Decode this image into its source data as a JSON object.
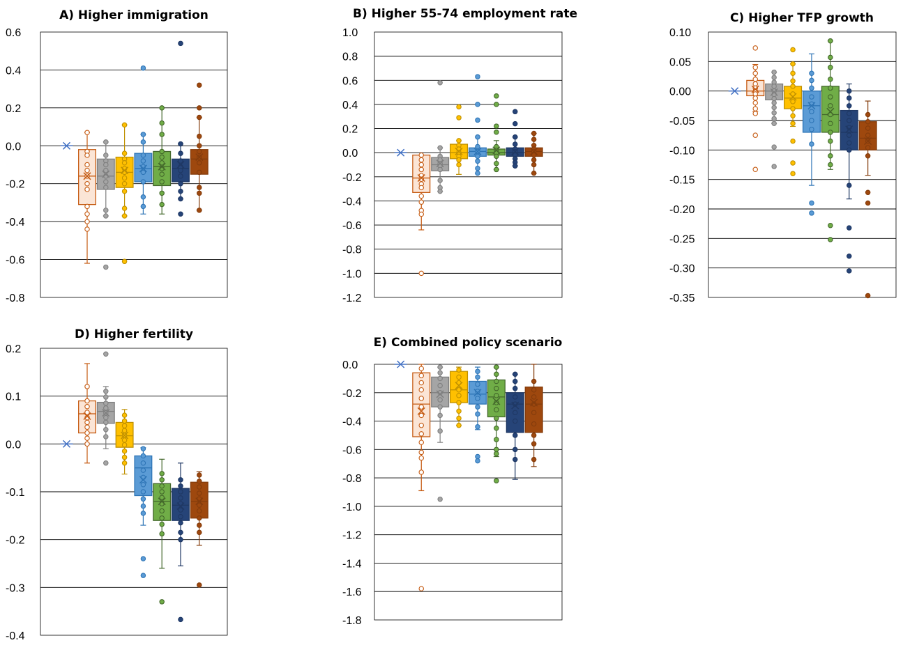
{
  "series_colors": [
    {
      "stroke": "#C55A11",
      "fill": "#FBE5D6",
      "dot": "#ffffff",
      "hollow": true
    },
    {
      "stroke": "#7F7F7F",
      "fill": "#A5A5A5",
      "dot": "#A5A5A5",
      "hollow": false
    },
    {
      "stroke": "#BF9000",
      "fill": "#FFC000",
      "dot": "#FFC000",
      "hollow": false
    },
    {
      "stroke": "#2E75B6",
      "fill": "#5B9BD5",
      "dot": "#5B9BD5",
      "hollow": false
    },
    {
      "stroke": "#43682B",
      "fill": "#70AD47",
      "dot": "#70AD47",
      "hollow": false
    },
    {
      "stroke": "#1F3864",
      "fill": "#264478",
      "dot": "#264478",
      "hollow": false
    },
    {
      "stroke": "#843C0C",
      "fill": "#9E480E",
      "dot": "#9E480E",
      "hollow": false
    }
  ],
  "baseline_color": "#4472C4",
  "chart_data": [
    {
      "type": "box",
      "title": "A) Higher immigration",
      "ylim": [
        -0.8,
        0.6
      ],
      "yticks": [
        "0.6",
        "0.4",
        "0.2",
        "0.0",
        "-0.2",
        "-0.4",
        "-0.6",
        "-0.8"
      ],
      "grid": true,
      "baseline": 0.0,
      "boxes": [
        {
          "q1": -0.31,
          "median": -0.16,
          "q3": -0.02,
          "mean": -0.16,
          "lo": -0.62,
          "hi": 0.07,
          "points": [
            0.07,
            -0.03,
            -0.05,
            -0.1,
            -0.13,
            -0.16,
            -0.2,
            -0.23,
            -0.32,
            -0.36,
            -0.4,
            -0.44
          ]
        },
        {
          "q1": -0.23,
          "median": -0.16,
          "q3": -0.07,
          "mean": -0.15,
          "lo": -0.37,
          "hi": 0.02,
          "points": [
            0.02,
            -0.05,
            -0.08,
            -0.1,
            -0.13,
            -0.16,
            -0.19,
            -0.22,
            -0.34,
            -0.37,
            -0.64
          ]
        },
        {
          "q1": -0.22,
          "median": -0.14,
          "q3": -0.06,
          "mean": -0.13,
          "lo": -0.37,
          "hi": 0.11,
          "points": [
            0.11,
            -0.04,
            -0.07,
            -0.09,
            -0.12,
            -0.14,
            -0.17,
            -0.2,
            -0.24,
            -0.33,
            -0.37,
            -0.61
          ]
        },
        {
          "q1": -0.19,
          "median": -0.12,
          "q3": -0.04,
          "mean": -0.12,
          "lo": -0.36,
          "hi": 0.06,
          "points": [
            0.41,
            0.06,
            0.02,
            -0.05,
            -0.08,
            -0.11,
            -0.14,
            -0.19,
            -0.27,
            -0.32
          ]
        },
        {
          "q1": -0.21,
          "median": -0.11,
          "q3": -0.03,
          "mean": -0.11,
          "lo": -0.36,
          "hi": 0.2,
          "points": [
            0.2,
            0.12,
            0.06,
            -0.03,
            -0.06,
            -0.09,
            -0.12,
            -0.15,
            -0.19,
            -0.25,
            -0.31
          ]
        },
        {
          "q1": -0.19,
          "median": -0.12,
          "q3": -0.07,
          "mean": -0.1,
          "lo": -0.28,
          "hi": 0.01,
          "points": [
            0.54,
            0.01,
            -0.04,
            -0.08,
            -0.11,
            -0.13,
            -0.16,
            -0.2,
            -0.24,
            -0.28,
            -0.36
          ]
        },
        {
          "q1": -0.15,
          "median": -0.07,
          "q3": -0.02,
          "mean": -0.06,
          "lo": -0.34,
          "hi": 0.15,
          "points": [
            0.32,
            0.2,
            0.15,
            0.05,
            0.0,
            -0.03,
            -0.06,
            -0.09,
            -0.14,
            -0.22,
            -0.25,
            -0.34
          ]
        }
      ]
    },
    {
      "type": "box",
      "title": "B) Higher 55-74 employment rate",
      "ylim": [
        -1.2,
        1.0
      ],
      "yticks": [
        "1.0",
        "0.8",
        "0.6",
        "0.4",
        "0.2",
        "0.0",
        "-0.2",
        "-0.4",
        "-0.6",
        "-0.8",
        "-1.0",
        "-1.2"
      ],
      "grid": true,
      "baseline": 0.0,
      "boxes": [
        {
          "q1": -0.33,
          "median": -0.21,
          "q3": -0.02,
          "mean": -0.21,
          "lo": -0.64,
          "hi": -0.02,
          "points": [
            -0.02,
            -0.06,
            -0.1,
            -0.14,
            -0.19,
            -0.22,
            -0.26,
            -0.29,
            -0.36,
            -0.41,
            -0.48,
            -0.51,
            -1.0
          ]
        },
        {
          "q1": -0.15,
          "median": -0.1,
          "q3": -0.04,
          "mean": -0.09,
          "lo": -0.32,
          "hi": 0.04,
          "points": [
            0.58,
            0.04,
            -0.03,
            -0.06,
            -0.09,
            -0.11,
            -0.14,
            -0.23,
            -0.29,
            -0.32
          ]
        },
        {
          "q1": -0.05,
          "median": 0.0,
          "q3": 0.07,
          "mean": 0.01,
          "lo": -0.18,
          "hi": 0.1,
          "points": [
            0.38,
            0.29,
            0.1,
            0.06,
            0.03,
            0.0,
            -0.03,
            -0.06,
            -0.1
          ]
        },
        {
          "q1": -0.03,
          "median": 0.01,
          "q3": 0.04,
          "mean": 0.01,
          "lo": -0.17,
          "hi": 0.13,
          "points": [
            0.63,
            0.4,
            0.27,
            0.13,
            0.05,
            0.01,
            -0.03,
            -0.07,
            -0.13,
            -0.17
          ]
        },
        {
          "q1": -0.02,
          "median": 0.0,
          "q3": 0.03,
          "mean": 0.02,
          "lo": -0.14,
          "hi": 0.1,
          "points": [
            0.47,
            0.4,
            0.22,
            0.17,
            0.05,
            0.02,
            0.0,
            -0.03,
            -0.09,
            -0.14
          ]
        },
        {
          "q1": -0.03,
          "median": 0.0,
          "q3": 0.04,
          "mean": 0.01,
          "lo": -0.11,
          "hi": 0.13,
          "points": [
            0.34,
            0.24,
            0.13,
            0.07,
            0.03,
            0.01,
            -0.02,
            -0.05,
            -0.08,
            -0.11
          ]
        },
        {
          "q1": -0.03,
          "median": 0.01,
          "q3": 0.04,
          "mean": 0.01,
          "lo": -0.17,
          "hi": 0.16,
          "points": [
            0.16,
            0.11,
            0.06,
            0.03,
            0.01,
            -0.02,
            -0.06,
            -0.1,
            -0.17
          ]
        }
      ]
    },
    {
      "type": "box",
      "title": "C) Higher TFP growth",
      "ylim": [
        -0.35,
        0.1
      ],
      "yticks": [
        "0.10",
        "0.05",
        "0.00",
        "-0.05",
        "-0.10",
        "-0.15",
        "-0.20",
        "-0.25",
        "-0.30",
        "-0.35"
      ],
      "grid": true,
      "baseline": 0.0,
      "boxes": [
        {
          "q1": -0.008,
          "median": 0.0,
          "q3": 0.018,
          "mean": 0.003,
          "lo": -0.035,
          "hi": 0.045,
          "points": [
            0.073,
            0.04,
            0.03,
            0.02,
            0.012,
            0.005,
            0.0,
            -0.005,
            -0.012,
            -0.02,
            -0.03,
            -0.038,
            -0.075,
            -0.133
          ]
        },
        {
          "q1": -0.015,
          "median": 0.0,
          "q3": 0.012,
          "mean": -0.002,
          "lo": -0.055,
          "hi": 0.032,
          "points": [
            0.032,
            0.023,
            0.015,
            0.008,
            0.0,
            -0.006,
            -0.013,
            -0.02,
            -0.028,
            -0.037,
            -0.047,
            -0.055,
            -0.095,
            -0.128
          ]
        },
        {
          "q1": -0.03,
          "median": -0.012,
          "q3": 0.008,
          "mean": -0.01,
          "lo": -0.06,
          "hi": 0.046,
          "points": [
            0.07,
            0.046,
            0.03,
            0.017,
            0.008,
            -0.005,
            -0.018,
            -0.03,
            -0.042,
            -0.055,
            -0.085,
            -0.122,
            -0.14
          ]
        },
        {
          "q1": -0.07,
          "median": -0.025,
          "q3": 0.0,
          "mean": -0.025,
          "lo": -0.16,
          "hi": 0.063,
          "points": [
            0.03,
            0.018,
            0.005,
            -0.01,
            -0.022,
            -0.035,
            -0.05,
            -0.065,
            -0.09,
            -0.19,
            -0.207
          ]
        },
        {
          "q1": -0.07,
          "median": -0.04,
          "q3": 0.008,
          "mean": -0.035,
          "lo": -0.133,
          "hi": 0.085,
          "points": [
            0.085,
            0.057,
            0.04,
            0.02,
            0.005,
            -0.01,
            -0.025,
            -0.04,
            -0.055,
            -0.07,
            -0.085,
            -0.11,
            -0.125,
            -0.228,
            -0.252
          ]
        },
        {
          "q1": -0.1,
          "median": -0.07,
          "q3": -0.033,
          "mean": -0.065,
          "lo": -0.183,
          "hi": 0.012,
          "points": [
            0.0,
            -0.012,
            -0.025,
            -0.038,
            -0.05,
            -0.062,
            -0.075,
            -0.088,
            -0.1,
            -0.16,
            -0.232,
            -0.28,
            -0.305
          ]
        },
        {
          "q1": -0.1,
          "median": -0.08,
          "q3": -0.052,
          "mean": -0.085,
          "lo": -0.143,
          "hi": -0.017,
          "points": [
            -0.04,
            -0.052,
            -0.063,
            -0.075,
            -0.085,
            -0.096,
            -0.11,
            -0.172,
            -0.19,
            -0.347
          ]
        }
      ]
    },
    {
      "type": "box",
      "title": "D) Higher fertility",
      "ylim": [
        -0.4,
        0.2
      ],
      "yticks": [
        "0.2",
        "0.1",
        "0.0",
        "-0.1",
        "-0.2",
        "-0.3",
        "-0.4"
      ],
      "grid": true,
      "baseline": 0.0,
      "boxes": [
        {
          "q1": 0.023,
          "median": 0.063,
          "q3": 0.09,
          "mean": 0.058,
          "lo": -0.04,
          "hi": 0.168,
          "points": [
            0.12,
            0.09,
            0.078,
            0.066,
            0.055,
            0.045,
            0.035,
            0.023,
            0.012,
            0.0
          ]
        },
        {
          "q1": 0.043,
          "median": 0.068,
          "q3": 0.087,
          "mean": 0.065,
          "lo": -0.01,
          "hi": 0.12,
          "points": [
            0.188,
            0.11,
            0.098,
            0.085,
            0.075,
            0.065,
            0.055,
            0.045,
            0.03,
            0.015,
            -0.04
          ]
        },
        {
          "q1": -0.007,
          "median": 0.017,
          "q3": 0.045,
          "mean": 0.018,
          "lo": -0.063,
          "hi": 0.072,
          "points": [
            0.06,
            0.048,
            0.038,
            0.028,
            0.018,
            0.008,
            -0.002,
            -0.015,
            -0.028,
            -0.04
          ]
        },
        {
          "q1": -0.108,
          "median": -0.05,
          "q3": -0.025,
          "mean": -0.075,
          "lo": -0.17,
          "hi": -0.008,
          "points": [
            -0.01,
            -0.025,
            -0.04,
            -0.055,
            -0.07,
            -0.085,
            -0.1,
            -0.115,
            -0.13,
            -0.145,
            -0.24,
            -0.275
          ]
        },
        {
          "q1": -0.16,
          "median": -0.12,
          "q3": -0.083,
          "mean": -0.12,
          "lo": -0.26,
          "hi": -0.032,
          "points": [
            -0.062,
            -0.075,
            -0.088,
            -0.1,
            -0.112,
            -0.125,
            -0.14,
            -0.155,
            -0.168,
            -0.188,
            -0.33
          ]
        },
        {
          "q1": -0.16,
          "median": -0.128,
          "q3": -0.093,
          "mean": -0.13,
          "lo": -0.255,
          "hi": -0.04,
          "points": [
            -0.075,
            -0.088,
            -0.1,
            -0.113,
            -0.125,
            -0.138,
            -0.152,
            -0.165,
            -0.185,
            -0.2,
            -0.367
          ]
        },
        {
          "q1": -0.155,
          "median": -0.12,
          "q3": -0.08,
          "mean": -0.12,
          "lo": -0.212,
          "hi": -0.058,
          "points": [
            -0.065,
            -0.078,
            -0.09,
            -0.103,
            -0.115,
            -0.128,
            -0.14,
            -0.155,
            -0.17,
            -0.185,
            -0.295
          ]
        }
      ]
    },
    {
      "type": "box",
      "title": "E) Combined policy scenario",
      "ylim": [
        -1.8,
        0.0
      ],
      "yticks": [
        "0.0",
        "-0.2",
        "-0.4",
        "-0.6",
        "-0.8",
        "-1.0",
        "-1.2",
        "-1.4",
        "-1.6",
        "-1.8"
      ],
      "grid": true,
      "baseline": 0.0,
      "boxes": [
        {
          "q1": -0.51,
          "median": -0.28,
          "q3": -0.06,
          "mean": -0.33,
          "lo": -0.89,
          "hi": 0.0,
          "points": [
            -0.03,
            -0.08,
            -0.13,
            -0.18,
            -0.24,
            -0.3,
            -0.36,
            -0.43,
            -0.49,
            -0.55,
            -0.62,
            -0.66,
            -0.76,
            -1.58
          ]
        },
        {
          "q1": -0.3,
          "median": -0.2,
          "q3": -0.09,
          "mean": -0.21,
          "lo": -0.55,
          "hi": -0.02,
          "points": [
            -0.02,
            -0.06,
            -0.1,
            -0.15,
            -0.2,
            -0.25,
            -0.3,
            -0.36,
            -0.47,
            -0.95
          ]
        },
        {
          "q1": -0.27,
          "median": -0.18,
          "q3": -0.05,
          "mean": -0.15,
          "lo": -0.43,
          "hi": -0.02,
          "points": [
            -0.04,
            -0.09,
            -0.13,
            -0.18,
            -0.22,
            -0.27,
            -0.33,
            -0.38,
            -0.43
          ]
        },
        {
          "q1": -0.28,
          "median": -0.21,
          "q3": -0.12,
          "mean": -0.2,
          "lo": -0.46,
          "hi": -0.02,
          "points": [
            -0.05,
            -0.09,
            -0.14,
            -0.19,
            -0.24,
            -0.3,
            -0.35,
            -0.44,
            -0.65,
            -0.68
          ]
        },
        {
          "q1": -0.37,
          "median": -0.23,
          "q3": -0.11,
          "mean": -0.26,
          "lo": -0.65,
          "hi": -0.02,
          "points": [
            -0.02,
            -0.07,
            -0.12,
            -0.17,
            -0.22,
            -0.27,
            -0.32,
            -0.38,
            -0.45,
            -0.53,
            -0.6,
            -0.63,
            -0.82
          ]
        },
        {
          "q1": -0.48,
          "median": -0.28,
          "q3": -0.2,
          "mean": -0.29,
          "lo": -0.81,
          "hi": -0.07,
          "points": [
            -0.07,
            -0.12,
            -0.17,
            -0.23,
            -0.28,
            -0.34,
            -0.4,
            -0.5,
            -0.6,
            -0.67
          ]
        },
        {
          "q1": -0.48,
          "median": -0.28,
          "q3": -0.16,
          "mean": -0.27,
          "lo": -0.72,
          "hi": 0.0,
          "points": [
            -0.12,
            -0.18,
            -0.23,
            -0.28,
            -0.34,
            -0.42,
            -0.5,
            -0.56,
            -0.67
          ]
        }
      ]
    }
  ]
}
